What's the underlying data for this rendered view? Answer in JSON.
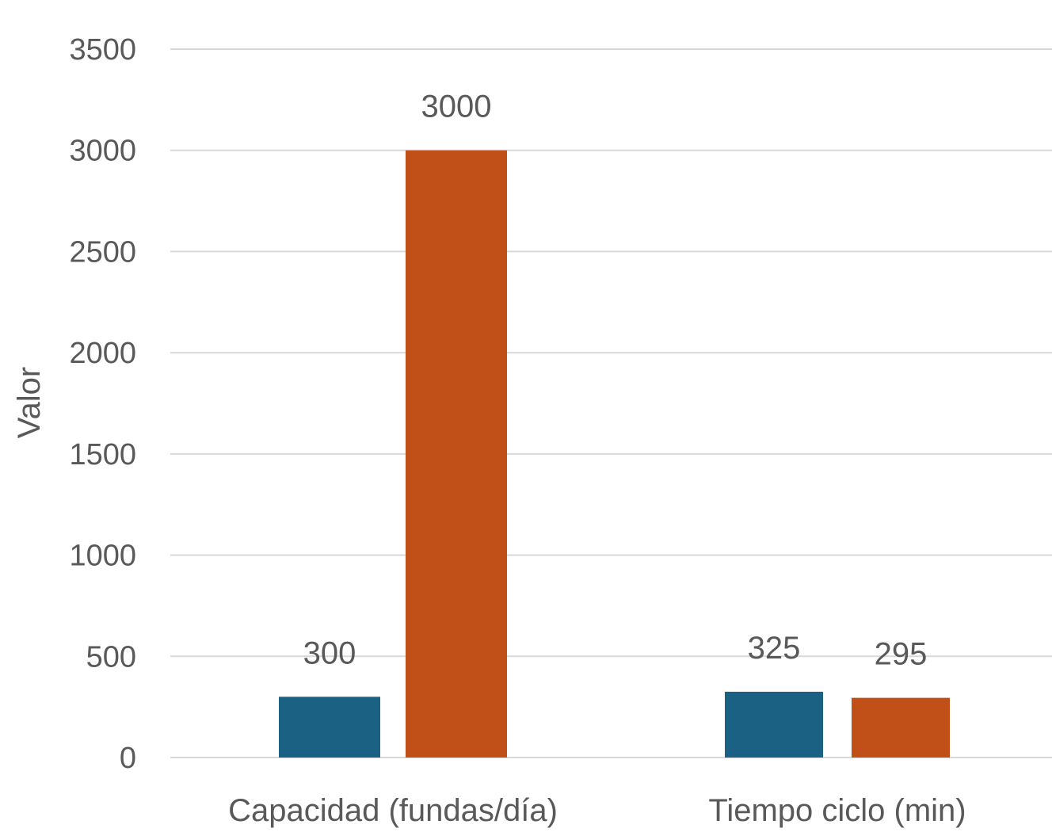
{
  "chart_data": {
    "type": "bar",
    "title": "",
    "xlabel": "",
    "ylabel": "Valor",
    "ylim": [
      0,
      3500
    ],
    "yticks": [
      0,
      500,
      1000,
      1500,
      2000,
      2500,
      3000,
      3500
    ],
    "grid": true,
    "legend": "none",
    "categories": [
      "Capacidad (fundas/día)",
      "Tiempo ciclo (min)"
    ],
    "series": [
      {
        "color": "#1a6184",
        "values": [
          300,
          325
        ],
        "labels": [
          "300",
          "325"
        ]
      },
      {
        "color": "#c05017",
        "values": [
          3000,
          295
        ],
        "labels": [
          "3000",
          "295"
        ]
      }
    ],
    "gridline_color": "#d9d9d9"
  }
}
